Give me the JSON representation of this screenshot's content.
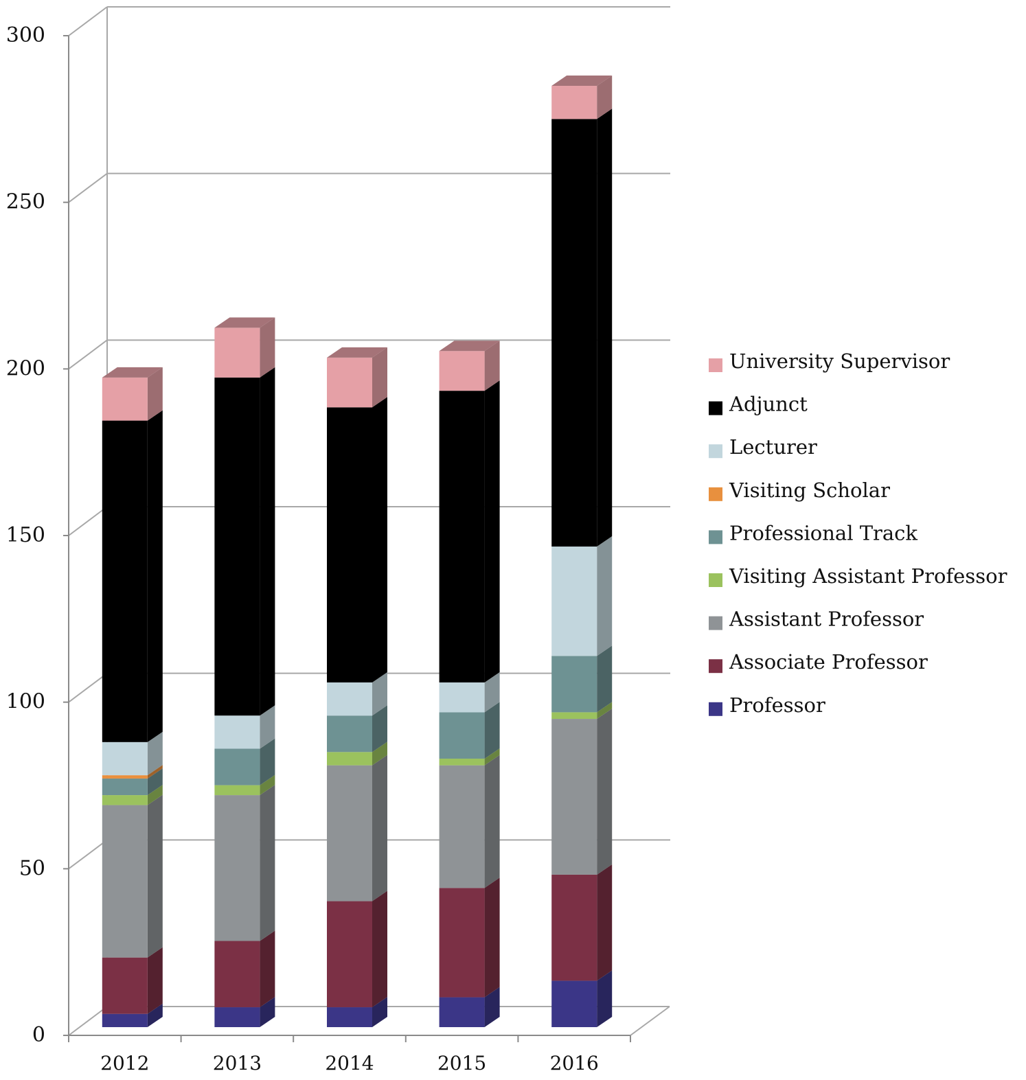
{
  "chart_data": {
    "type": "bar",
    "stacked": true,
    "style": "3d",
    "title": "",
    "xlabel": "",
    "ylabel": "",
    "ylim": [
      0,
      300
    ],
    "yticks": [
      0,
      50,
      100,
      150,
      200,
      250,
      300
    ],
    "ytick_labels": [
      "0",
      "50",
      "100",
      "150",
      "200",
      "250",
      "300"
    ],
    "categories": [
      "2012",
      "2013",
      "2014",
      "2015",
      "2016"
    ],
    "grid": true,
    "legend_position": "right",
    "series": [
      {
        "name": "Professor",
        "color": "#3b3687",
        "values": [
          4,
          6,
          6,
          9,
          14
        ]
      },
      {
        "name": "Associate Professor",
        "color": "#7b3045",
        "values": [
          17,
          20,
          32,
          33,
          32
        ]
      },
      {
        "name": "Assistant Professor",
        "color": "#8f9396",
        "values": [
          46,
          44,
          41,
          37,
          47
        ]
      },
      {
        "name": "Visiting Assistant Professor",
        "color": "#9bc25e",
        "values": [
          3,
          3,
          4,
          2,
          2
        ]
      },
      {
        "name": "Professional Track",
        "color": "#6e9293",
        "values": [
          5,
          11,
          11,
          14,
          17
        ]
      },
      {
        "name": "Visiting Scholar",
        "color": "#e8903e",
        "values": [
          1,
          0,
          0,
          0,
          0
        ]
      },
      {
        "name": "Lecturer",
        "color": "#c2d6dd",
        "values": [
          10,
          10,
          10,
          9,
          33
        ]
      },
      {
        "name": "Adjunct",
        "color": "#000000",
        "values": [
          97,
          102,
          83,
          88,
          129
        ]
      },
      {
        "name": "University Supervisor",
        "color": "#e5a0a6",
        "values": [
          13,
          15,
          15,
          12,
          10
        ]
      }
    ]
  }
}
